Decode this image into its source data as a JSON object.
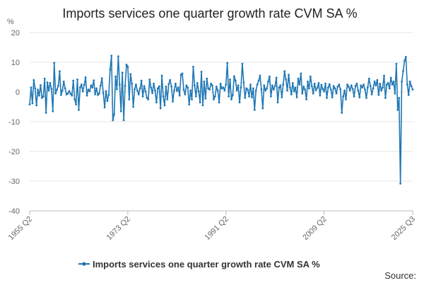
{
  "chart_data": {
    "type": "line",
    "title": "Imports services one quarter growth rate CVM SA %",
    "ylabel": "%",
    "xlabel": "",
    "ylim": [
      -40,
      20
    ],
    "y_ticks": [
      20,
      10,
      0,
      -10,
      -20,
      -30,
      -40
    ],
    "x_ticks": [
      {
        "label": "1955 Q2",
        "index": 0
      },
      {
        "label": "1973 Q2",
        "index": 72
      },
      {
        "label": "1991 Q2",
        "index": 144
      },
      {
        "label": "2009 Q2",
        "index": 216
      },
      {
        "label": "2025 Q3",
        "index": 281
      }
    ],
    "grid": true,
    "legend_position": "bottom",
    "series": [
      {
        "name": "Imports services one quarter growth rate CVM SA %",
        "color": "#1f77b4",
        "values": [
          -4.2,
          1.5,
          -3.8,
          4.0,
          1.2,
          -4.5,
          0.8,
          -1.2,
          2.3,
          -2.0,
          -1.5,
          4.5,
          -7.0,
          3.2,
          0.5,
          3.0,
          1.0,
          -6.5,
          9.8,
          -0.5,
          0.8,
          2.1,
          7.0,
          -1.0,
          0.5,
          3.5,
          1.2,
          -0.8,
          -0.5,
          0.3,
          -0.6,
          -1.2,
          3.8,
          -2.5,
          -4.2,
          4.2,
          -6.0,
          1.5,
          2.5,
          0.2,
          2.4,
          4.9,
          -1.2,
          0.8,
          0.3,
          2.2,
          1.5,
          3.9,
          -0.8,
          1.2,
          -1.0,
          -0.5,
          2.1,
          4.6,
          -0.4,
          -5.2,
          0.3,
          -3.0,
          -1.0,
          7.5,
          12.2,
          -9.5,
          -7.5,
          5.2,
          0.9,
          12.0,
          2.5,
          -6.5,
          6.5,
          -9.5,
          2.0,
          9.2,
          8.5,
          -2.5,
          6.0,
          2.8,
          -5.0,
          0.9,
          2.5,
          0.5,
          -0.8,
          1.2,
          3.8,
          -1.5,
          2.0,
          0.2,
          -2.0,
          -2.5,
          4.2,
          1.5,
          -0.4,
          2.8,
          0.5,
          -3.5,
          1.2,
          1.9,
          -5.5,
          5.5,
          -1.5,
          -4.5,
          1.8,
          -2.5,
          2.6,
          4.0,
          1.8,
          -3.2,
          0.5,
          2.8,
          0.4,
          1.5,
          -1.2,
          5.8,
          6.2,
          0.8,
          -0.8,
          2.2,
          1.5,
          -4.2,
          0.5,
          -2.5,
          8.5,
          2.2,
          -1.5,
          3.0,
          0.2,
          -3.5,
          6.8,
          -4.5,
          3.5,
          -2.2,
          4.5,
          1.2,
          0.8,
          2.8,
          2.2,
          -2.5,
          -1.5,
          1.8,
          0.5,
          -3.5,
          2.8,
          1.2,
          1.5,
          0.5,
          2.5,
          9.8,
          -1.5,
          4.2,
          -2.5,
          -1.0,
          5.3,
          3.8,
          0.5,
          2.2,
          -3.5,
          1.5,
          9.5,
          3.2,
          -2.0,
          1.2,
          0.8,
          -1.5,
          2.5,
          -1.8,
          1.2,
          -6.0,
          0.5,
          2.5,
          3.8,
          5.5,
          0.9,
          -5.5,
          2.2,
          0.5,
          1.2,
          3.5,
          5.2,
          -1.5,
          2.2,
          0.8,
          2.0,
          4.8,
          -3.5,
          1.5,
          2.2,
          -1.8,
          2.5,
          7.0,
          4.2,
          0.5,
          5.8,
          1.5,
          -0.8,
          3.0,
          0.2,
          1.5,
          -1.8,
          4.5,
          2.5,
          6.2,
          -0.5,
          1.8,
          0.8,
          -2.5,
          3.5,
          1.2,
          5.2,
          2.0,
          -0.5,
          2.8,
          0.6,
          1.4,
          3.0,
          -1.2,
          2.4,
          1.0,
          0.2,
          2.8,
          -2.0,
          1.5,
          2.6,
          0.8,
          -1.8,
          2.0,
          1.2,
          -0.5,
          1.8,
          2.5,
          0.9,
          -7.0,
          -1.5,
          0.5,
          -2.5,
          2.5,
          1.8,
          0.5,
          2.2,
          1.0,
          -1.5,
          2.0,
          2.8,
          0.5,
          -1.8,
          2.2,
          1.5,
          2.5,
          0.8,
          -2.0,
          1.5,
          4.5,
          2.0,
          -0.8,
          1.2,
          3.5,
          2.2,
          4.0,
          -1.0,
          2.8,
          0.5,
          1.5,
          5.5,
          -2.0,
          2.5,
          3.0,
          1.2,
          4.8,
          2.5,
          3.5,
          -0.5,
          9.5,
          -6.0,
          -2.0,
          -30.8,
          3.5,
          7.0,
          10.5,
          11.8,
          2.5,
          -1.0,
          3.5,
          2.0,
          0.8
        ]
      }
    ],
    "source_label": "Source:"
  }
}
